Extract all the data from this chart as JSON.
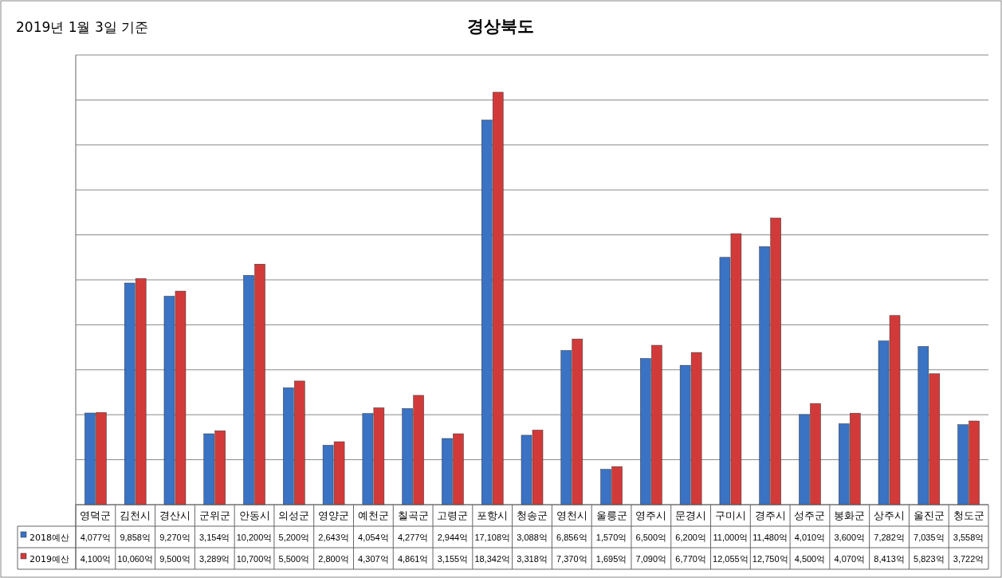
{
  "chart_data": {
    "type": "bar",
    "title": "경상북도",
    "annotations": [
      "2019년 1월 3일 기준"
    ],
    "categories": [
      "영덕군",
      "김천시",
      "경산시",
      "군위군",
      "안동시",
      "의성군",
      "영양군",
      "예천군",
      "칠곡군",
      "고령군",
      "포항시",
      "청송군",
      "영천시",
      "울릉군",
      "영주시",
      "문경시",
      "구미시",
      "경주시",
      "성주군",
      "봉화군",
      "상주시",
      "울진군",
      "청도군"
    ],
    "series": [
      {
        "name": "2018예산",
        "color": "#3a72c4",
        "values": [
          4077,
          9858,
          9270,
          3154,
          10200,
          5200,
          2643,
          4054,
          4277,
          2944,
          17108,
          3088,
          6856,
          1570,
          6500,
          6200,
          11000,
          11480,
          4010,
          3600,
          7282,
          7035,
          3558
        ],
        "value_labels": [
          "4,077억",
          "9,858억",
          "9,270억",
          "3,154억",
          "10,200억",
          "5,200억",
          "2,643억",
          "4,054억",
          "4,277억",
          "2,944억",
          "17,108억",
          "3,088억",
          "6,856억",
          "1,570억",
          "6,500억",
          "6,200억",
          "11,000억",
          "11,480억",
          "4,010억",
          "3,600억",
          "7,282억",
          "7,035억",
          "3,558억"
        ]
      },
      {
        "name": "2019예산",
        "color": "#d23a3a",
        "values": [
          4100,
          10060,
          9500,
          3289,
          10700,
          5500,
          2800,
          4307,
          4861,
          3155,
          18342,
          3318,
          7370,
          1695,
          7090,
          6770,
          12055,
          12750,
          4500,
          4070,
          8413,
          5823,
          3722
        ],
        "value_labels": [
          "4,100억",
          "10,060억",
          "9,500억",
          "3,289억",
          "10,700억",
          "5,500억",
          "2,800억",
          "4,307억",
          "4,861억",
          "3,155억",
          "18,342억",
          "3,318억",
          "7,370억",
          "1,695억",
          "7,090억",
          "6,770억",
          "12,055억",
          "12,750억",
          "4,500억",
          "4,070억",
          "8,413억",
          "5,823억",
          "3,722억"
        ]
      }
    ],
    "ylim": [
      0,
      20000
    ],
    "yticks": [
      {
        "value": 0,
        "label": null
      },
      {
        "value": 2000,
        "label": null
      },
      {
        "value": 4000,
        "label": null
      },
      {
        "value": 6000,
        "label": null
      },
      {
        "value": 8000,
        "label": null
      },
      {
        "value": 10000,
        "label": null
      },
      {
        "value": 12000,
        "label": null
      },
      {
        "value": 14000,
        "label": null
      },
      {
        "value": 16000,
        "label": null
      },
      {
        "value": 18000,
        "label": null
      },
      {
        "value": 20000,
        "label": null
      }
    ],
    "grid": "y",
    "legend": "bottom left",
    "tick_labels": "x"
  }
}
